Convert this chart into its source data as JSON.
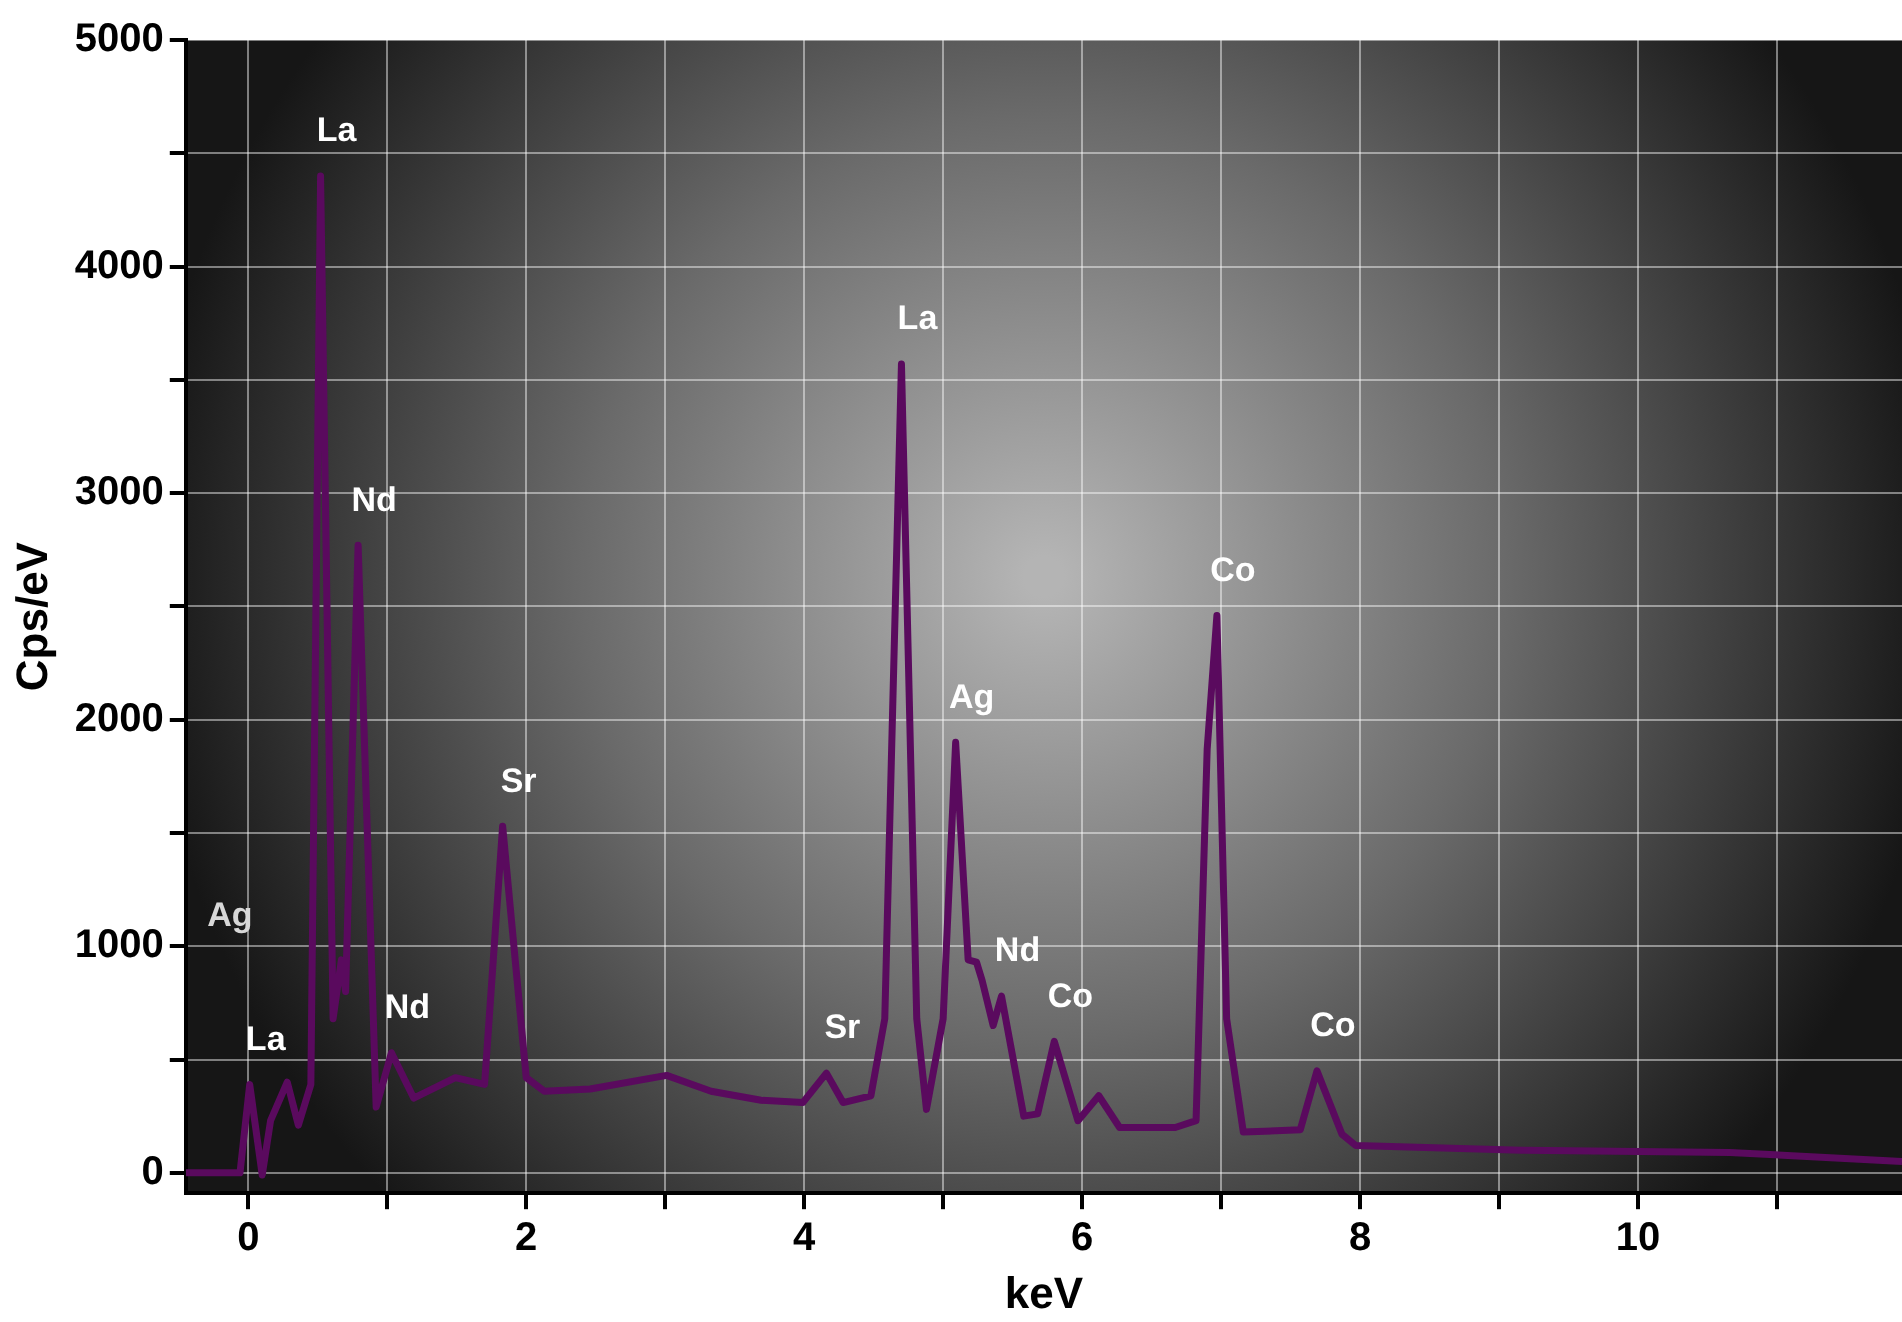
{
  "chart_data": {
    "type": "line",
    "xlabel": "keV",
    "ylabel": "Cps/eV",
    "xlim": [
      -0.45,
      11.9
    ],
    "ylim": [
      -90,
      5000
    ],
    "xticks": [
      0,
      {
        "value": 1,
        "label": null
      },
      2,
      {
        "value": 3,
        "label": null
      },
      4,
      {
        "value": 5,
        "label": null
      },
      6,
      {
        "value": 7,
        "label": null
      },
      8,
      {
        "value": 9,
        "label": null
      },
      10,
      {
        "value": 11,
        "label": null
      }
    ],
    "yticks": [
      0,
      {
        "value": 500,
        "label": null
      },
      1000,
      {
        "value": 1500,
        "label": null
      },
      2000,
      {
        "value": 2500,
        "label": null
      },
      3000,
      {
        "value": 3500,
        "label": null
      },
      4000,
      {
        "value": 4500,
        "label": null
      },
      5000
    ],
    "grid": true,
    "legend": false,
    "marker": "none",
    "line_style": "solid",
    "series": [
      {
        "color": "#5a0a5e",
        "x": [
          -0.45,
          -0.06,
          0.01,
          0.1,
          0.16,
          0.28,
          0.36,
          0.45,
          0.52,
          0.61,
          0.67,
          0.7,
          0.79,
          0.92,
          1.03,
          1.19,
          1.49,
          1.7,
          1.83,
          2.0,
          2.13,
          2.46,
          3.01,
          3.33,
          3.69,
          3.99,
          4.16,
          4.28,
          4.48,
          4.58,
          4.7,
          4.81,
          4.88,
          5.0,
          5.09,
          5.18,
          5.24,
          5.28,
          5.36,
          5.42,
          5.58,
          5.68,
          5.8,
          5.97,
          6.12,
          6.27,
          6.67,
          6.82,
          6.9,
          6.97,
          7.04,
          7.16,
          7.57,
          7.69,
          7.87,
          7.97,
          9.16,
          10.66,
          11.9
        ],
        "values": [
          0,
          0,
          390,
          -10,
          230,
          400,
          210,
          390,
          4400,
          680,
          940,
          800,
          2770,
          290,
          530,
          330,
          420,
          390,
          1530,
          420,
          360,
          370,
          430,
          360,
          320,
          310,
          440,
          310,
          340,
          680,
          3570,
          680,
          280,
          680,
          1900,
          940,
          930,
          850,
          650,
          780,
          250,
          260,
          580,
          230,
          340,
          200,
          200,
          230,
          1870,
          2460,
          680,
          180,
          190,
          450,
          170,
          120,
          100,
          90,
          50
        ]
      }
    ],
    "annotations": [
      {
        "text": "La",
        "x": 0.52,
        "y": 4400
      },
      {
        "text": "Nd",
        "x": 0.79,
        "y": 2770
      },
      {
        "text": "Sr",
        "x": 1.83,
        "y": 1530
      },
      "Ag",
      {
        "text": "Nd",
        "x": 1.03,
        "y": 530
      },
      {
        "text": "La",
        "x": 0.01,
        "y": 390
      },
      {
        "text": "Sr",
        "x": 4.16,
        "y": 440
      },
      {
        "text": "La",
        "x": 4.7,
        "y": 3570
      },
      {
        "text": "Ag",
        "x": 5.09,
        "y": 1900
      },
      {
        "text": "Nd",
        "x": 5.42,
        "y": 780
      },
      {
        "text": "Co",
        "x": 5.8,
        "y": 580
      },
      {
        "text": "Co",
        "x": 6.97,
        "y": 2460
      },
      {
        "text": "Co",
        "x": 7.69,
        "y": 450
      }
    ]
  }
}
